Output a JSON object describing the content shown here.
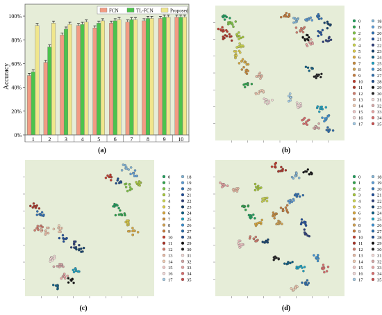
{
  "chart_data": [
    {
      "panel": "(a)",
      "type": "bar",
      "ylabel": "Accuracy",
      "xlabel": "",
      "ylim": [
        0,
        1.1
      ],
      "categories": [
        "1",
        "2",
        "3",
        "4",
        "5",
        "6",
        "7",
        "8",
        "9",
        "10"
      ],
      "yticks": [
        "0%",
        "20%",
        "40%",
        "60%",
        "80%",
        "100%"
      ],
      "legend": "top-right",
      "series": [
        {
          "name": "FCN",
          "color": "#f29b83",
          "values": [
            0.5,
            0.61,
            0.84,
            0.92,
            0.9,
            0.94,
            0.95,
            0.96,
            0.98,
            0.99
          ]
        },
        {
          "name": "TL-FCN",
          "color": "#4cc34c",
          "values": [
            0.53,
            0.74,
            0.89,
            0.93,
            0.94,
            0.96,
            0.97,
            0.98,
            0.99,
            0.99
          ]
        },
        {
          "name": "Proposed",
          "color": "#f0e68c",
          "values": [
            0.92,
            0.94,
            0.93,
            0.95,
            0.96,
            0.97,
            0.97,
            0.98,
            0.99,
            0.99
          ]
        }
      ]
    },
    {
      "panel": "(b)",
      "type": "scatter"
    },
    {
      "panel": "(c)",
      "type": "scatter"
    },
    {
      "panel": "(d)",
      "type": "scatter"
    }
  ],
  "legend_classes": [
    "0",
    "1",
    "2",
    "3",
    "4",
    "5",
    "6",
    "7",
    "8",
    "9",
    "10",
    "11",
    "12",
    "13",
    "14",
    "15",
    "16",
    "17",
    "18",
    "19",
    "20",
    "21",
    "22",
    "23",
    "24",
    "25",
    "26",
    "27",
    "28",
    "29",
    "30",
    "31",
    "32",
    "33",
    "34",
    "35"
  ],
  "legend_colors": [
    "#1b9e5a",
    "#2ca24a",
    "#7cc242",
    "#a6c83a",
    "#c9d34a",
    "#d8c845",
    "#d8a63a",
    "#c88a3a",
    "#d0a050",
    "#c47a3a",
    "#c0392b",
    "#a93226",
    "#d07a6a",
    "#e6b8a2",
    "#f0c9b0",
    "#eec2c2",
    "#f1d6d6",
    "#9ec9e6",
    "#7fb3d5",
    "#5b9bd5",
    "#2e6fb2",
    "#1f4e9a",
    "#2c3e7a",
    "#123f6b",
    "#0c5e84",
    "#1aa0c0",
    "#3b8fcf",
    "#2a6aa8",
    "#1d4b8c",
    "#111111",
    "#222222",
    "#f2d7d5",
    "#d4a5a5",
    "#e6a0a0",
    "#d96b6b",
    "#c94c4c"
  ],
  "labels": {
    "a": "(a)",
    "b": "(b)",
    "c": "(c)",
    "d": "(d)"
  }
}
